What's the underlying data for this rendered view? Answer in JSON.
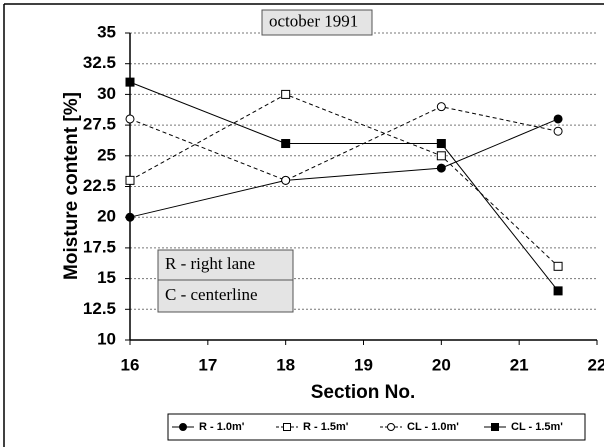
{
  "chart_data": {
    "type": "line",
    "y_label": "Moisture content [%]",
    "x_label": "Section No.",
    "annotations": [
      "october 1991",
      "R - right lane",
      "C - centerline"
    ],
    "x": [
      16,
      18,
      20,
      21.5
    ],
    "series": [
      {
        "name": "R - 1.0m'",
        "color": "#000000",
        "marker": "circle",
        "filled": true,
        "dashed": false,
        "values": [
          20,
          23,
          24,
          28
        ]
      },
      {
        "name": "R - 1.5m'",
        "color": "#000000",
        "marker": "square",
        "filled": false,
        "dashed": true,
        "values": [
          23,
          30,
          25,
          16
        ]
      },
      {
        "name": "CL - 1.0m'",
        "color": "#000000",
        "marker": "circle",
        "filled": false,
        "dashed": true,
        "values": [
          28,
          23,
          29,
          27
        ]
      },
      {
        "name": "CL - 1.5m'",
        "color": "#000000",
        "marker": "square",
        "filled": true,
        "dashed": false,
        "values": [
          31,
          26,
          26,
          14
        ]
      }
    ],
    "xlim": [
      16,
      22
    ],
    "xticks": [
      16,
      17,
      18,
      19,
      20,
      21,
      22
    ],
    "ylim": [
      10,
      35
    ],
    "yticks": [
      10,
      12.5,
      15,
      17.5,
      20,
      22.5,
      25,
      27.5,
      30,
      32.5,
      35
    ],
    "grid": true,
    "legend": "bottom"
  }
}
